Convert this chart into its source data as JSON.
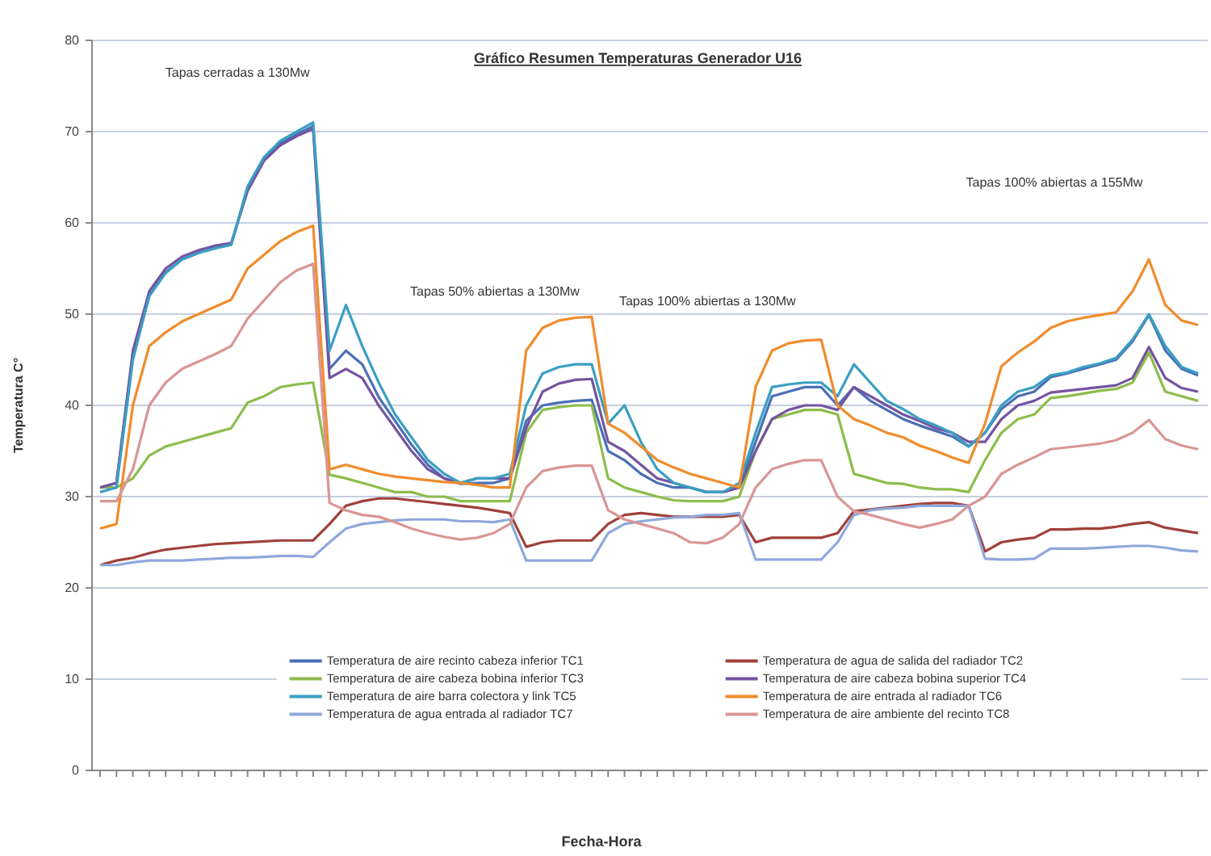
{
  "chart_data": {
    "type": "line",
    "title": "Gráfico Resumen Temperaturas Generador U16",
    "xlabel": "Fecha-Hora",
    "ylabel": "Temperatura C°",
    "categories": [
      null,
      null,
      null,
      null,
      null,
      null,
      null,
      null,
      null,
      null,
      null,
      null,
      null,
      null,
      null,
      null,
      null,
      null,
      null,
      null,
      null,
      null,
      null,
      null,
      null,
      null,
      null,
      null,
      null,
      null,
      null,
      null,
      null,
      null,
      null,
      null,
      null,
      null,
      null,
      null,
      null,
      null,
      null,
      null,
      null,
      null,
      null,
      null,
      null,
      null,
      null,
      null,
      null,
      null,
      null,
      null,
      null,
      null,
      null,
      null,
      null,
      null,
      null,
      null,
      null,
      null,
      null,
      null
    ],
    "ylim": [
      0,
      80
    ],
    "yticks": [
      0,
      10,
      20,
      30,
      40,
      50,
      60,
      70,
      80
    ],
    "grid": "y",
    "legend": "bottom",
    "marker": "none",
    "line_style": "solid",
    "annotations": [
      "Tapas cerradas a 130Mw",
      "Tapas 50% abiertas a 130Mw",
      "Tapas 100% abiertas a 130Mw",
      "Tapas 100% abiertas a 155Mw"
    ],
    "series": [
      {
        "name": "Temperatura de aire recinto cabeza inferior TC1",
        "color": "#4a6fb5",
        "values": [
          31,
          31.5,
          45.5,
          52,
          54.6,
          56,
          56.7,
          57.3,
          57.6,
          63.8,
          67,
          68.7,
          69.7,
          70.6,
          44,
          46,
          44.5,
          40.9,
          38.3,
          35.7,
          33.5,
          32,
          31.4,
          31.5,
          31.5,
          32,
          38.3,
          40,
          40.3,
          40.5,
          40.6,
          35,
          34,
          32.5,
          31.5,
          31,
          31,
          30.5,
          30.5,
          31,
          36,
          41,
          41.5,
          42,
          42,
          40,
          42,
          40.5,
          39.5,
          38.5,
          37.8,
          37.2,
          36.6,
          35.5,
          37,
          39.6,
          41,
          41.5,
          43.1,
          43.5,
          44,
          44.5,
          45,
          47,
          49.9,
          46,
          44,
          43.3
        ]
      },
      {
        "name": "Temperatura de agua de salida del radiador TC2",
        "color": "#a0403a",
        "values": [
          22.5,
          23,
          23.3,
          23.8,
          24.2,
          24.4,
          24.6,
          24.8,
          24.9,
          25,
          25.1,
          25.2,
          25.2,
          25.2,
          27,
          29,
          29.5,
          29.8,
          29.8,
          29.6,
          29.4,
          29.2,
          29,
          28.8,
          28.5,
          28.2,
          24.5,
          25,
          25.2,
          25.2,
          25.2,
          27,
          28,
          28.2,
          28,
          27.8,
          27.8,
          27.8,
          27.8,
          28,
          25,
          25.5,
          25.5,
          25.5,
          25.5,
          26,
          28.4,
          28.6,
          28.8,
          29,
          29.2,
          29.3,
          29.3,
          29,
          24,
          25,
          25.3,
          25.5,
          26.4,
          26.4,
          26.5,
          26.5,
          26.7,
          27,
          27.2,
          26.6,
          26.3,
          26
        ]
      },
      {
        "name": "Temperatura de aire cabeza bobina inferior TC3",
        "color": "#8cbd4c",
        "values": [
          31,
          31,
          32,
          34.5,
          35.5,
          36,
          36.5,
          37,
          37.5,
          40.3,
          41,
          42,
          42.3,
          42.5,
          32.4,
          32,
          31.5,
          31,
          30.5,
          30.5,
          30,
          30,
          29.5,
          29.5,
          29.5,
          29.5,
          37,
          39.5,
          39.8,
          40,
          40,
          32,
          31,
          30.5,
          30,
          29.6,
          29.5,
          29.5,
          29.5,
          30,
          35,
          38.5,
          39,
          39.5,
          39.5,
          39,
          32.5,
          32,
          31.5,
          31.4,
          31,
          30.8,
          30.8,
          30.5,
          34,
          37,
          38.5,
          39,
          40.8,
          41,
          41.3,
          41.6,
          41.8,
          42.5,
          45.8,
          41.5,
          41,
          40.5
        ]
      },
      {
        "name": "Temperatura de aire cabeza bobina superior TC4",
        "color": "#7454a0",
        "values": [
          31,
          31.5,
          46,
          52.5,
          55,
          56.3,
          57,
          57.5,
          57.8,
          63.5,
          66.8,
          68.5,
          69.5,
          70.3,
          43,
          44,
          43,
          40,
          37.5,
          35,
          33,
          32,
          31.5,
          32,
          32,
          32,
          37.5,
          41.5,
          42.4,
          42.8,
          42.9,
          36,
          35,
          33.5,
          32,
          31.5,
          31,
          30.5,
          30.5,
          31,
          35,
          38.5,
          39.5,
          40,
          40,
          39.5,
          42,
          41,
          40,
          39,
          38.3,
          37.5,
          37,
          36,
          36,
          38.5,
          40,
          40.5,
          41.4,
          41.6,
          41.8,
          42,
          42.2,
          43,
          46.4,
          43,
          41.9,
          41.5
        ]
      },
      {
        "name": "Temperatura de aire barra colectora y link TC5",
        "color": "#3b9fc3",
        "values": [
          30.5,
          31,
          45,
          52,
          54.5,
          56,
          56.7,
          57.2,
          57.6,
          64,
          67.2,
          69,
          70,
          71,
          46,
          51,
          46.5,
          42.5,
          39,
          36.5,
          34,
          32.5,
          31.5,
          32,
          32,
          32.5,
          40,
          43.5,
          44.2,
          44.5,
          44.5,
          38,
          40,
          36,
          33,
          31.5,
          31,
          30.5,
          30.5,
          31.5,
          37,
          42,
          42.3,
          42.5,
          42.5,
          41,
          44.5,
          42.5,
          40.5,
          39.6,
          38.5,
          37.8,
          37,
          35.5,
          37,
          40,
          41.5,
          42,
          43.3,
          43.6,
          44.2,
          44.6,
          45.2,
          47.2,
          50,
          46.5,
          44.2,
          43.5
        ]
      },
      {
        "name": "Temperatura de aire entrada al radiador TC6",
        "color": "#f08c2c",
        "values": [
          26.5,
          27,
          40,
          46.5,
          48,
          49.2,
          50,
          50.8,
          51.6,
          55,
          56.5,
          58,
          59,
          59.7,
          33,
          33.5,
          33,
          32.5,
          32.2,
          32,
          31.8,
          31.6,
          31.5,
          31.3,
          31,
          31,
          46,
          48.5,
          49.3,
          49.6,
          49.7,
          38,
          37,
          35.5,
          34,
          33.2,
          32.5,
          32,
          31.5,
          31,
          42,
          46,
          46.8,
          47.1,
          47.2,
          40,
          38.5,
          37.8,
          37,
          36.5,
          35.6,
          35,
          34.3,
          33.7,
          38,
          44.3,
          45.8,
          47,
          48.5,
          49.2,
          49.6,
          49.9,
          50.2,
          52.5,
          56,
          51,
          49.3,
          48.8
        ]
      },
      {
        "name": "Temperatura de agua entrada al radiador TC7",
        "color": "#8fa8dc",
        "values": [
          22.5,
          22.5,
          22.8,
          23,
          23,
          23,
          23.1,
          23.2,
          23.3,
          23.3,
          23.4,
          23.5,
          23.5,
          23.4,
          25,
          26.5,
          27,
          27.2,
          27.4,
          27.5,
          27.5,
          27.5,
          27.3,
          27.3,
          27.2,
          27.5,
          23,
          23,
          23,
          23,
          23,
          26,
          27,
          27.3,
          27.5,
          27.7,
          27.8,
          28,
          28,
          28.2,
          23.1,
          23.1,
          23.1,
          23.1,
          23.1,
          25,
          28,
          28.5,
          28.7,
          28.8,
          29,
          29,
          29,
          29,
          23.2,
          23.1,
          23.1,
          23.2,
          24.3,
          24.3,
          24.3,
          24.4,
          24.5,
          24.6,
          24.6,
          24.4,
          24.1,
          24
        ]
      },
      {
        "name": "Temperatura de aire ambiente del recinto TC8",
        "color": "#d99694",
        "values": [
          29.5,
          29.5,
          33,
          40,
          42.5,
          44,
          44.8,
          45.6,
          46.5,
          49.5,
          51.5,
          53.5,
          54.8,
          55.5,
          29.3,
          28.5,
          28,
          27.8,
          27.2,
          26.5,
          26,
          25.6,
          25.3,
          25.5,
          26,
          27,
          31,
          32.8,
          33.2,
          33.4,
          33.4,
          28.5,
          27.5,
          27,
          26.5,
          26,
          25,
          24.9,
          25.5,
          27,
          31,
          33,
          33.6,
          34,
          34,
          30,
          28.4,
          28,
          27.5,
          27,
          26.6,
          27,
          27.5,
          29,
          30,
          32.5,
          33.5,
          34.3,
          35.2,
          35.4,
          35.6,
          35.8,
          36.2,
          37,
          38.4,
          36.3,
          35.6,
          35.2
        ]
      }
    ]
  }
}
